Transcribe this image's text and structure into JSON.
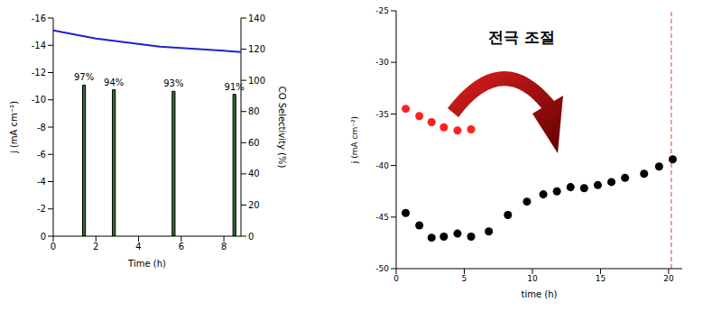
{
  "chart_data": [
    {
      "type": "combo",
      "xlabel": "Time (h)",
      "ylabel": "j (mA cm⁻²)",
      "y2label": "CO Selectivity (%)",
      "xlim": [
        0,
        8.8
      ],
      "xticks": [
        0,
        2,
        4,
        6,
        8
      ],
      "ylim": [
        0,
        -16
      ],
      "yticks": [
        0,
        -2,
        -4,
        -6,
        -8,
        -10,
        -12,
        -14,
        -16
      ],
      "y2lim": [
        0,
        140
      ],
      "y2ticks": [
        0,
        20,
        40,
        60,
        80,
        100,
        120,
        140
      ],
      "series": [
        {
          "type": "line",
          "color": "#2020d0",
          "x": [
            0,
            1,
            2,
            3,
            4,
            5,
            6,
            7,
            8,
            8.8
          ],
          "values": [
            -15.1,
            -14.8,
            -14.5,
            -14.3,
            -14.1,
            -13.9,
            -13.8,
            -13.7,
            -13.6,
            -13.5
          ]
        },
        {
          "type": "bar",
          "axis": "y2",
          "color": "#2f6b2f",
          "data_labels": true,
          "x": [
            1.45,
            2.85,
            5.65,
            8.5
          ],
          "values": [
            97,
            94,
            93,
            91
          ],
          "value_labels": [
            "97%",
            "94%",
            "93%",
            "91%"
          ]
        }
      ]
    },
    {
      "type": "scatter",
      "xlabel": "time (h)",
      "ylabel": "j (mA cm⁻²)",
      "xlim": [
        0,
        21
      ],
      "xticks": [
        0,
        5,
        10,
        15,
        20
      ],
      "ylim": [
        -50,
        -25
      ],
      "yticks": [
        -50,
        -45,
        -40,
        -35,
        -30,
        -25
      ],
      "annotations": [
        {
          "text": "전극 조절",
          "color": "#000000"
        }
      ],
      "vline": {
        "x": 20.2,
        "color": "#ff3030",
        "line_style": "dashed"
      },
      "series": [
        {
          "color": "#ff2020",
          "marker": "circle",
          "x": [
            0.7,
            1.7,
            2.6,
            3.5,
            4.5,
            5.5
          ],
          "values": [
            -34.5,
            -35.2,
            -35.8,
            -36.3,
            -36.6,
            -36.5
          ]
        },
        {
          "color": "#000000",
          "marker": "circle",
          "x": [
            0.7,
            1.7,
            2.6,
            3.5,
            4.5,
            5.5,
            6.8,
            8.2,
            9.6,
            10.8,
            11.8,
            12.8,
            13.8,
            14.8,
            15.8,
            16.8,
            18.2,
            19.3,
            20.3
          ],
          "values": [
            -44.6,
            -45.8,
            -47.0,
            -46.9,
            -46.6,
            -46.9,
            -46.4,
            -44.8,
            -43.5,
            -42.8,
            -42.5,
            -42.1,
            -42.2,
            -41.9,
            -41.6,
            -41.2,
            -40.8,
            -40.1,
            -39.4
          ]
        }
      ]
    }
  ]
}
